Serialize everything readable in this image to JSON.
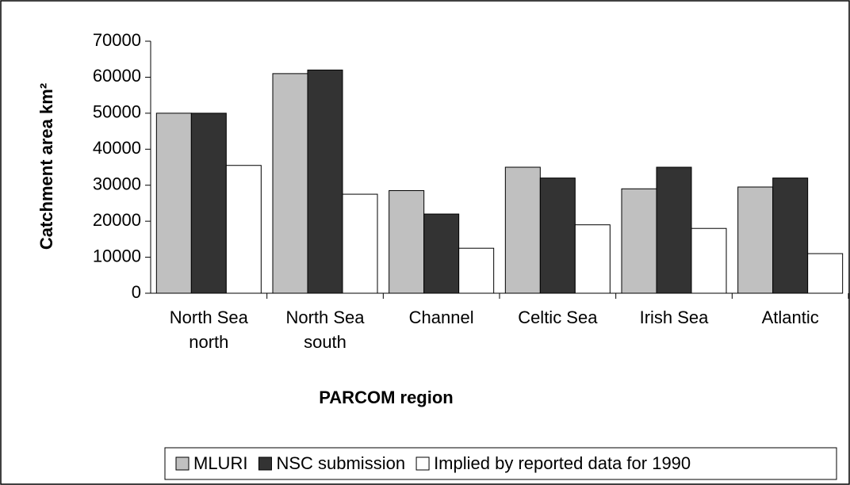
{
  "chart_data": {
    "type": "bar",
    "x_label": "PARCOM region",
    "y_label": "Catchment area km²",
    "categories": [
      "North Sea north",
      "North Sea south",
      "Channel",
      "Celtic Sea",
      "Irish Sea",
      "Atlantic"
    ],
    "series": [
      {
        "name": "MLURI",
        "color": "#c0c0c0",
        "values": [
          50000,
          61000,
          28500,
          35000,
          29000,
          29500
        ]
      },
      {
        "name": "NSC submission",
        "color": "#333333",
        "values": [
          50000,
          62000,
          22000,
          32000,
          35000,
          32000
        ]
      },
      {
        "name": "Implied by reported data for 1990",
        "color": "#ffffff",
        "values": [
          35500,
          27500,
          12500,
          19000,
          18000,
          11000
        ]
      }
    ],
    "ylim": [
      0,
      70000
    ],
    "yticks": [
      0,
      10000,
      20000,
      30000,
      40000,
      50000,
      60000,
      70000
    ],
    "legend": "bottom"
  }
}
